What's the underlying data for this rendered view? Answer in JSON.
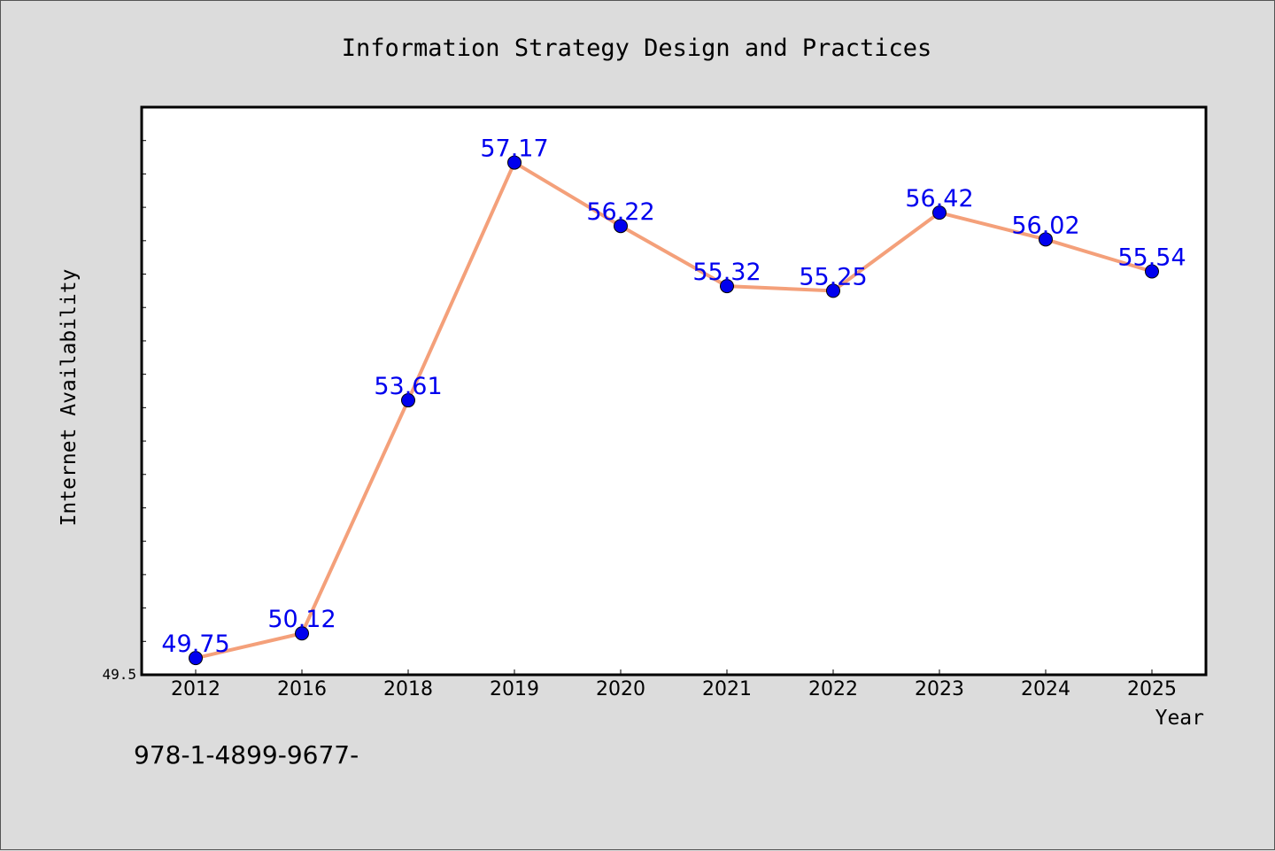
{
  "chart_data": {
    "type": "line",
    "title": "Information Strategy Design and Practices",
    "xlabel": "Year",
    "ylabel": "Internet Availability",
    "categories": [
      "2012",
      "2016",
      "2018",
      "2019",
      "2020",
      "2021",
      "2022",
      "2023",
      "2024",
      "2025"
    ],
    "series": [
      {
        "values": [
          49.75,
          50.12,
          53.61,
          57.17,
          56.22,
          55.32,
          55.25,
          56.42,
          56.02,
          55.54
        ],
        "labels": [
          "49.75",
          "50.12",
          "53.61",
          "57.17",
          "56.22",
          "55.32",
          "55.25",
          "56.42",
          "56.02",
          "55.54"
        ],
        "line_color": "#f4a07a",
        "marker_color": "#0000ee",
        "label_color": "#0000ee"
      }
    ],
    "y_tick_label": "49.5",
    "ylim": [
      49.5,
      58.0
    ],
    "grid": false,
    "legend": "none"
  },
  "footer_note": "978-1-4899-9677-"
}
